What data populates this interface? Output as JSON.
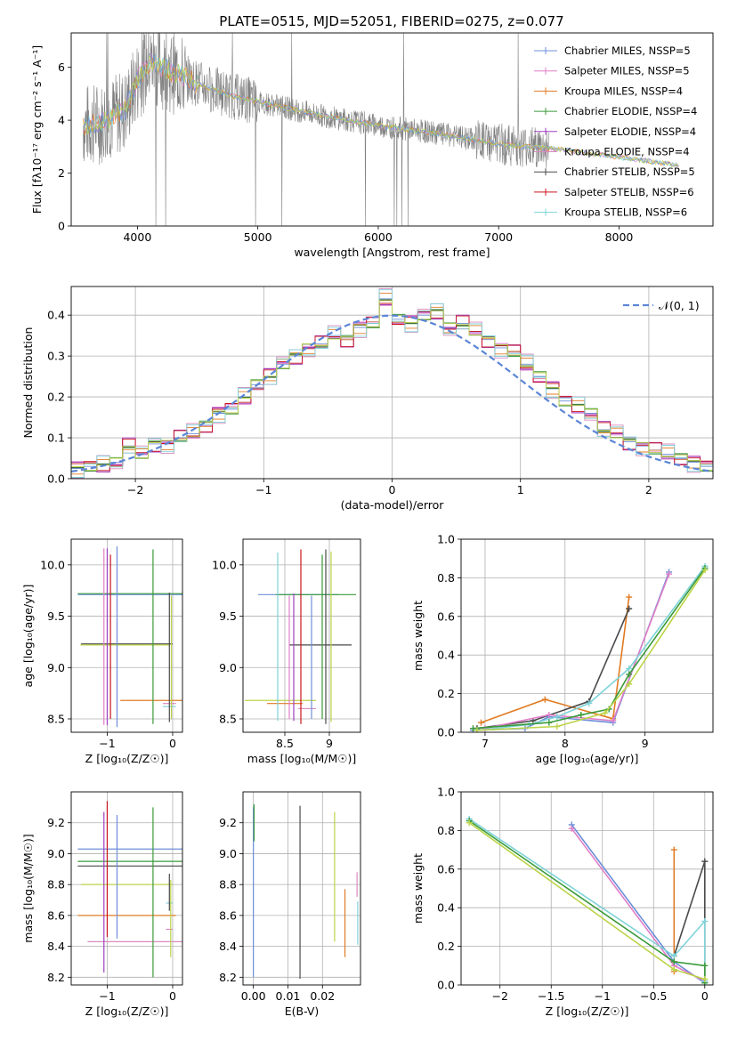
{
  "figure": {
    "title": "PLATE=0515, MJD=52051, FIBERID=0275, z=0.077"
  },
  "colors": {
    "spectrum": "#808080",
    "palette": [
      "#6d8fd8",
      "#e07ec8",
      "#e07b24",
      "#3a9a3a",
      "#9e3ec0",
      "#d98bc0",
      "#4a4a4a",
      "#c8141e",
      "#7fd3d8",
      "#bcd44a"
    ],
    "normal_curve": "#5b86d6"
  },
  "chart_data": [
    {
      "type": "line",
      "id": "spectrum",
      "title": "PLATE=0515, MJD=52051, FIBERID=0275, z=0.077",
      "xlabel": "wavelength [Angstrom, rest frame]",
      "ylabel": "Flux [fλ10⁻¹⁷ erg cm⁻² s⁻¹ A⁻¹]",
      "xlim": [
        3450,
        8780
      ],
      "ylim": [
        0,
        7.3
      ],
      "xticks": [
        4000,
        5000,
        6000,
        7000,
        8000
      ],
      "yticks": [
        0,
        2,
        4,
        6
      ],
      "grid": false,
      "legend_position": "top-right",
      "legend": [
        "Chabrier MILES, NSSP=5",
        "Salpeter MILES, NSSP=5",
        "Kroupa MILES, NSSP=4",
        "Chabrier ELODIE, NSSP=4",
        "Salpeter ELODIE, NSSP=4",
        "Kroupa ELODIE, NSSP=4",
        "Chabrier STELIB, NSSP=5",
        "Salpeter STELIB, NSSP=6",
        "Kroupa STELIB, NSSP=6"
      ],
      "continuum": {
        "x": [
          3550,
          3700,
          3900,
          4000,
          4100,
          4200,
          4400,
          4600,
          4800,
          5000,
          5200,
          5500,
          6000,
          6500,
          7000,
          7500,
          8000,
          8500
        ],
        "y": [
          3.8,
          3.9,
          4.4,
          5.5,
          6.2,
          6.0,
          5.6,
          5.2,
          4.9,
          4.7,
          4.5,
          4.2,
          3.8,
          3.5,
          3.1,
          2.9,
          2.6,
          2.3
        ]
      }
    },
    {
      "type": "histogram",
      "id": "residuals",
      "xlabel": "(data-model)/error",
      "ylabel": "Normed distribution",
      "xlim": [
        -2.5,
        2.5
      ],
      "ylim": [
        0,
        0.47
      ],
      "xticks": [
        -2,
        -1,
        0,
        1,
        2
      ],
      "yticks": [
        0.0,
        0.1,
        0.2,
        0.3,
        0.4
      ],
      "grid": true,
      "legend_position": "top-right",
      "legend": [
        "𝒩(0, 1)"
      ],
      "bin_edges_start": -2.5,
      "bin_width": 0.1,
      "histogram_values": [
        0.025,
        0.03,
        0.035,
        0.04,
        0.08,
        0.06,
        0.085,
        0.085,
        0.1,
        0.11,
        0.13,
        0.16,
        0.17,
        0.2,
        0.23,
        0.25,
        0.28,
        0.3,
        0.32,
        0.33,
        0.35,
        0.34,
        0.37,
        0.38,
        0.44,
        0.39,
        0.38,
        0.4,
        0.41,
        0.37,
        0.38,
        0.36,
        0.34,
        0.32,
        0.31,
        0.28,
        0.25,
        0.22,
        0.19,
        0.18,
        0.16,
        0.12,
        0.11,
        0.09,
        0.08,
        0.07,
        0.06,
        0.05,
        0.04,
        0.03
      ],
      "normal_curve": {
        "mean": 0,
        "sigma": 1
      }
    },
    {
      "type": "errorbar",
      "id": "age-vs-z",
      "xlabel": "Z [log₁₀(Z/Z☉)]",
      "ylabel": "age  [log₁₀(age/yr)]",
      "xlim": [
        -1.55,
        0.15
      ],
      "ylim": [
        8.37,
        10.25
      ],
      "xticks": [
        -1,
        0
      ],
      "yticks": [
        8.5,
        9.0,
        9.5,
        10.0
      ],
      "grid": true,
      "points": [
        {
          "x": -0.5,
          "y": 9.71,
          "xerr": 0.95,
          "yerr": 0.0
        },
        {
          "x": -0.6,
          "y": 9.72,
          "xerr": 0.85,
          "yerr": 0.0
        },
        {
          "x": -0.7,
          "y": 9.23,
          "xerr": 0.7,
          "yerr": 0.0
        },
        {
          "x": -0.73,
          "y": 9.22,
          "xerr": 0.68,
          "yerr": 0.0
        },
        {
          "x": -0.3,
          "y": 8.68,
          "xerr": 0.5,
          "yerr": 0.0
        },
        {
          "x": -0.05,
          "y": 8.65,
          "xerr": 0.1,
          "yerr": 0.0
        },
        {
          "x": -0.05,
          "y": 8.62,
          "xerr": 0.1,
          "yerr": 0.0
        },
        {
          "x": -1.05,
          "y": 9.3,
          "xerr": 0.0,
          "yerr": 0.86
        },
        {
          "x": -1.0,
          "y": 9.3,
          "xerr": 0.0,
          "yerr": 0.86
        },
        {
          "x": -0.95,
          "y": 9.3,
          "xerr": 0.0,
          "yerr": 0.8
        },
        {
          "x": -0.85,
          "y": 9.3,
          "xerr": 0.0,
          "yerr": 0.88
        },
        {
          "x": -0.3,
          "y": 9.3,
          "xerr": 0.0,
          "yerr": 0.85
        },
        {
          "x": -0.05,
          "y": 9.1,
          "xerr": 0.0,
          "yerr": 0.63
        },
        {
          "x": -0.02,
          "y": 9.1,
          "xerr": 0.0,
          "yerr": 0.6
        }
      ]
    },
    {
      "type": "errorbar",
      "id": "age-vs-mass",
      "xlabel": "mass [log₁₀(M/M☉)]",
      "ylabel": "",
      "xlim": [
        8.03,
        9.35
      ],
      "ylim": [
        8.37,
        10.25
      ],
      "xticks": [
        8.5,
        9.0
      ],
      "yticks": [
        8.5,
        9.0,
        9.5,
        10.0
      ],
      "grid": true,
      "points": [
        {
          "x": 8.65,
          "y": 9.71,
          "xerr": 0.45,
          "yerr": 0.0
        },
        {
          "x": 8.85,
          "y": 9.71,
          "xerr": 0.45,
          "yerr": 0.0
        },
        {
          "x": 8.9,
          "y": 9.22,
          "xerr": 0.35,
          "yerr": 0.0
        },
        {
          "x": 8.45,
          "y": 8.68,
          "xerr": 0.4,
          "yerr": 0.0
        },
        {
          "x": 8.5,
          "y": 8.65,
          "xerr": 0.2,
          "yerr": 0.0
        },
        {
          "x": 8.75,
          "y": 8.6,
          "xerr": 0.1,
          "yerr": 0.0
        },
        {
          "x": 8.42,
          "y": 9.3,
          "xerr": 0.0,
          "yerr": 0.82
        },
        {
          "x": 8.55,
          "y": 9.1,
          "xerr": 0.0,
          "yerr": 0.6
        },
        {
          "x": 8.6,
          "y": 9.1,
          "xerr": 0.0,
          "yerr": 0.62
        },
        {
          "x": 8.68,
          "y": 9.3,
          "xerr": 0.0,
          "yerr": 0.85
        },
        {
          "x": 8.8,
          "y": 9.1,
          "xerr": 0.0,
          "yerr": 0.6
        },
        {
          "x": 8.92,
          "y": 9.3,
          "xerr": 0.0,
          "yerr": 0.8
        },
        {
          "x": 8.96,
          "y": 9.3,
          "xerr": 0.0,
          "yerr": 0.85
        },
        {
          "x": 9.02,
          "y": 9.3,
          "xerr": 0.0,
          "yerr": 0.83
        }
      ]
    },
    {
      "type": "line",
      "id": "massweight-vs-age",
      "xlabel": "age  [log₁₀(age/yr)]",
      "ylabel": "mass weight",
      "xlim": [
        6.7,
        9.85
      ],
      "ylim": [
        0,
        1.0
      ],
      "xticks": [
        7,
        8,
        9
      ],
      "yticks": [
        0.0,
        0.2,
        0.4,
        0.6,
        0.8,
        1.0
      ],
      "grid": true,
      "series": [
        {
          "x": [
            6.95,
            7.75,
            8.6,
            8.8
          ],
          "y": [
            0.05,
            0.17,
            0.07,
            0.7
          ]
        },
        {
          "x": [
            6.9,
            7.6,
            8.3,
            8.8
          ],
          "y": [
            0.02,
            0.06,
            0.16,
            0.64
          ]
        },
        {
          "x": [
            6.85,
            7.5,
            7.8,
            8.6,
            9.3
          ],
          "y": [
            0.01,
            0.02,
            0.08,
            0.05,
            0.83
          ]
        },
        {
          "x": [
            7.0,
            7.8,
            8.6,
            9.3
          ],
          "y": [
            0.02,
            0.09,
            0.06,
            0.82
          ]
        },
        {
          "x": [
            6.9,
            7.55,
            7.9,
            8.3,
            8.8,
            9.75
          ],
          "y": [
            0.01,
            0.04,
            0.08,
            0.15,
            0.33,
            0.86
          ]
        },
        {
          "x": [
            6.85,
            7.8,
            8.2,
            8.55,
            8.8,
            9.75
          ],
          "y": [
            0.02,
            0.05,
            0.09,
            0.12,
            0.3,
            0.85
          ]
        },
        {
          "x": [
            6.9,
            7.9,
            8.5,
            8.8,
            9.75
          ],
          "y": [
            0.01,
            0.03,
            0.1,
            0.25,
            0.84
          ]
        }
      ]
    },
    {
      "type": "errorbar",
      "id": "mass-vs-z",
      "xlabel": "Z [log₁₀(Z/Z☉)]",
      "ylabel": "mass [log₁₀(M/M☉)]",
      "xlim": [
        -1.55,
        0.15
      ],
      "ylim": [
        8.15,
        9.4
      ],
      "xticks": [
        -1,
        0
      ],
      "yticks": [
        8.2,
        8.4,
        8.6,
        8.8,
        9.0,
        9.2
      ],
      "grid": true,
      "points": [
        {
          "x": -0.6,
          "y": 9.03,
          "xerr": 0.85,
          "yerr": 0.0
        },
        {
          "x": -0.65,
          "y": 8.95,
          "xerr": 0.8,
          "yerr": 0.0
        },
        {
          "x": -0.6,
          "y": 8.92,
          "xerr": 0.85,
          "yerr": 0.0
        },
        {
          "x": -0.7,
          "y": 8.8,
          "xerr": 0.7,
          "yerr": 0.0
        },
        {
          "x": -0.7,
          "y": 8.6,
          "xerr": 0.75,
          "yerr": 0.0
        },
        {
          "x": -0.5,
          "y": 8.43,
          "xerr": 0.8,
          "yerr": 0.0
        },
        {
          "x": -0.05,
          "y": 8.68,
          "xerr": 0.05,
          "yerr": 0.0
        },
        {
          "x": -0.05,
          "y": 8.51,
          "xerr": 0.05,
          "yerr": 0.0
        },
        {
          "x": -1.05,
          "y": 8.75,
          "xerr": 0.0,
          "yerr": 0.52
        },
        {
          "x": -1.0,
          "y": 8.9,
          "xerr": 0.0,
          "yerr": 0.44
        },
        {
          "x": -0.85,
          "y": 8.85,
          "xerr": 0.0,
          "yerr": 0.4
        },
        {
          "x": -0.3,
          "y": 8.75,
          "xerr": 0.0,
          "yerr": 0.55
        },
        {
          "x": -0.05,
          "y": 8.75,
          "xerr": 0.0,
          "yerr": 0.12
        },
        {
          "x": -0.03,
          "y": 8.58,
          "xerr": 0.0,
          "yerr": 0.25
        }
      ]
    },
    {
      "type": "errorbar",
      "id": "mass-vs-ebv",
      "xlabel": "E(B-V)",
      "ylabel": "",
      "xlim": [
        -0.003,
        0.031
      ],
      "ylim": [
        8.15,
        9.4
      ],
      "xticks": [
        0.0,
        0.01,
        0.02
      ],
      "xtick_labels": [
        "0.00",
        "0.01",
        "0.02"
      ],
      "yticks": [
        8.2,
        8.4,
        8.6,
        8.8,
        9.0,
        9.2
      ],
      "grid": true,
      "points": [
        {
          "x": 0.0,
          "y": 8.75,
          "xerr": 0.0,
          "yerr": 0.55
        },
        {
          "x": 0.0002,
          "y": 9.2,
          "xerr": 0.0,
          "yerr": 0.12
        },
        {
          "x": 0.0135,
          "y": 8.75,
          "xerr": 0.0,
          "yerr": 0.56
        },
        {
          "x": 0.0235,
          "y": 8.85,
          "xerr": 0.0,
          "yerr": 0.42
        },
        {
          "x": 0.0265,
          "y": 8.55,
          "xerr": 0.0,
          "yerr": 0.22
        },
        {
          "x": 0.03,
          "y": 8.8,
          "xerr": 0.0,
          "yerr": 0.08
        },
        {
          "x": 0.0302,
          "y": 8.55,
          "xerr": 0.0,
          "yerr": 0.14
        }
      ]
    },
    {
      "type": "line",
      "id": "massweight-vs-z",
      "xlabel": "Z [log₁₀(Z/Z☉)]",
      "ylabel": "mass weight",
      "xlim": [
        -2.38,
        0.08
      ],
      "ylim": [
        0,
        1.0
      ],
      "xticks": [
        -2.0,
        -1.5,
        -1.0,
        -0.5,
        0.0
      ],
      "yticks": [
        0.0,
        0.2,
        0.4,
        0.6,
        0.8,
        1.0
      ],
      "grid": true,
      "series": [
        {
          "x": [
            -0.3,
            -0.3,
            -0.3
          ],
          "y": [
            0.7,
            0.12,
            0.07
          ]
        },
        {
          "x": [
            -0.3,
            0.0,
            0.0
          ],
          "y": [
            0.15,
            0.64,
            0.02
          ]
        },
        {
          "x": [
            -1.3,
            -0.3,
            0.0
          ],
          "y": [
            0.83,
            0.12,
            0.01
          ]
        },
        {
          "x": [
            -1.3,
            -0.3,
            0.0
          ],
          "y": [
            0.81,
            0.1,
            0.02
          ]
        },
        {
          "x": [
            -2.3,
            -0.3,
            0.0,
            0.0
          ],
          "y": [
            0.86,
            0.15,
            0.33,
            0.02
          ]
        },
        {
          "x": [
            -2.3,
            -0.3,
            0.0,
            0.0
          ],
          "y": [
            0.85,
            0.12,
            0.1,
            0.01
          ]
        },
        {
          "x": [
            -2.3,
            -0.3,
            0.0
          ],
          "y": [
            0.84,
            0.08,
            0.03
          ]
        }
      ]
    }
  ]
}
